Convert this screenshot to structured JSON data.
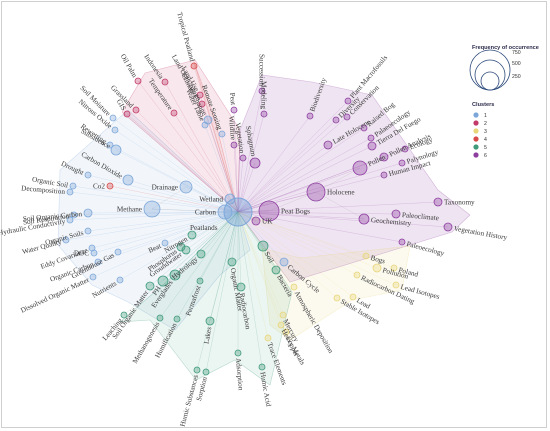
{
  "legend": {
    "size_title": "Frequency of occurrence",
    "size_values": [
      "750",
      "500",
      "250"
    ],
    "cluster_title": "Clusters",
    "clusters": [
      {
        "label": "1",
        "color": "#7da7d9"
      },
      {
        "label": "2",
        "color": "#c23b6a"
      },
      {
        "label": "3",
        "color": "#e8d67a"
      },
      {
        "label": "4",
        "color": "#d84a4a"
      },
      {
        "label": "5",
        "color": "#3f9a7a"
      },
      {
        "label": "6",
        "color": "#8e3fa0"
      }
    ]
  },
  "hub": {
    "name": "Peatlands",
    "label": "Peatlands"
  },
  "nodes": [
    {
      "id": "carbon",
      "label": "Carbon",
      "cluster": 1
    },
    {
      "id": "wetland",
      "label": "Wetland",
      "cluster": 1
    },
    {
      "id": "methane",
      "label": "Methane",
      "cluster": 1
    },
    {
      "id": "drainage",
      "label": "Drainage",
      "cluster": 1
    },
    {
      "id": "carbon-dioxide",
      "label": "Carbon Dioxide",
      "cluster": 1
    },
    {
      "id": "co2",
      "label": "Co2",
      "cluster": 4
    },
    {
      "id": "drought",
      "label": "Drought",
      "cluster": 1
    },
    {
      "id": "organic-soil",
      "label": "Organic Soil",
      "cluster": 1
    },
    {
      "id": "decomposition",
      "label": "Decomposition",
      "cluster": 1
    },
    {
      "id": "soil-organic-carbon",
      "label": "Soil Organic Carbon",
      "cluster": 1
    },
    {
      "id": "soil-respiration",
      "label": "Soil Respiration",
      "cluster": 1
    },
    {
      "id": "hydraulic-conductivity",
      "label": "Hydraulic Conductivity",
      "cluster": 1
    },
    {
      "id": "organic-soils",
      "label": "Organic Soils",
      "cluster": 1
    },
    {
      "id": "water-quality",
      "label": "Water Quality",
      "cluster": 1
    },
    {
      "id": "eddy-covariance",
      "label": "Eddy Covariance",
      "cluster": 1
    },
    {
      "id": "doc",
      "label": "DOC",
      "cluster": 1
    },
    {
      "id": "organic-carbon",
      "label": "Organic Carbon",
      "cluster": 1
    },
    {
      "id": "greenhouse-gas",
      "label": "Greenhouse Gas",
      "cluster": 1
    },
    {
      "id": "dissolved-organic-matter",
      "label": "Dissolved Organic Matter",
      "cluster": 1
    },
    {
      "id": "nutrients",
      "label": "Nutrients",
      "cluster": 1
    },
    {
      "id": "soil-moisture",
      "label": "Soil Moisture",
      "cluster": 1
    },
    {
      "id": "nitrous-oxide",
      "label": "Nitrous Oxide",
      "cluster": 1
    },
    {
      "id": "rewetting",
      "label": "Rewetting",
      "cluster": 1
    },
    {
      "id": "subsidence",
      "label": "Subsidence",
      "cluster": 1
    },
    {
      "id": "gis",
      "label": "GIS",
      "cluster": 2
    },
    {
      "id": "grassland",
      "label": "Grassland",
      "cluster": 2
    },
    {
      "id": "oil-palm",
      "label": "Oil Palm",
      "cluster": 2
    },
    {
      "id": "tropical-peatland",
      "label": "Tropical Peatland",
      "cluster": 4
    },
    {
      "id": "indonesia",
      "label": "Indonesia",
      "cluster": 2
    },
    {
      "id": "temperature",
      "label": "Temperature",
      "cluster": 2
    },
    {
      "id": "land-use",
      "label": "Land Use",
      "cluster": 2
    },
    {
      "id": "land-use-change",
      "label": "Land Use Change",
      "cluster": 2
    },
    {
      "id": "climate-change",
      "label": "Climate Change",
      "cluster": 1
    },
    {
      "id": "water-table",
      "label": "Water Table",
      "cluster": 1
    },
    {
      "id": "remote-sensing",
      "label": "Remote Sensing",
      "cluster": 1
    },
    {
      "id": "wildfire",
      "label": "Wildfire",
      "cluster": 6
    },
    {
      "id": "peat",
      "label": "Peat",
      "cluster": 6
    },
    {
      "id": "vegetation",
      "label": "Vegetation",
      "cluster": 6
    },
    {
      "id": "succession",
      "label": "Succession",
      "cluster": 6
    },
    {
      "id": "modeling",
      "label": "Modeling",
      "cluster": 6
    },
    {
      "id": "sphagnum",
      "label": "Sphagnum",
      "cluster": 6
    },
    {
      "id": "peat-bogs",
      "label": "Peat Bogs",
      "cluster": 6
    },
    {
      "id": "uk",
      "label": "UK",
      "cluster": 6
    },
    {
      "id": "holocene",
      "label": "Holocene",
      "cluster": 6
    },
    {
      "id": "biodiversity",
      "label": "Biodiversity",
      "cluster": 6
    },
    {
      "id": "plant-macrofossils",
      "label": "Plant Macrofossils",
      "cluster": 6
    },
    {
      "id": "conservation",
      "label": "Conservation",
      "cluster": 6
    },
    {
      "id": "diversity",
      "label": "Diversity",
      "cluster": 6
    },
    {
      "id": "raised-bog",
      "label": "Raised Bog",
      "cluster": 6
    },
    {
      "id": "palaeoecology",
      "label": "Palaeoecology",
      "cluster": 6
    },
    {
      "id": "late-holocene",
      "label": "Late Holocene",
      "cluster": 6
    },
    {
      "id": "tierra-del-fuego",
      "label": "Tierra Del Fuego",
      "cluster": 6
    },
    {
      "id": "pollen",
      "label": "Pollen",
      "cluster": 6
    },
    {
      "id": "pollen-analysis",
      "label": "Pollen Analysis",
      "cluster": 6
    },
    {
      "id": "ecology",
      "label": "Ecology",
      "cluster": 6
    },
    {
      "id": "palynology",
      "label": "Palynology",
      "cluster": 6
    },
    {
      "id": "human-impact",
      "label": "Human Impact",
      "cluster": 6
    },
    {
      "id": "taxonomy",
      "label": "Taxonomy",
      "cluster": 6
    },
    {
      "id": "paleoclimate",
      "label": "Paleoclimate",
      "cluster": 6
    },
    {
      "id": "geochemistry",
      "label": "Geochemistry",
      "cluster": 6
    },
    {
      "id": "vegetation-history",
      "label": "Vegetation History",
      "cluster": 6
    },
    {
      "id": "paleoecology",
      "label": "Paleoecology",
      "cluster": 6
    },
    {
      "id": "bogs",
      "label": "Bogs",
      "cluster": 3
    },
    {
      "id": "pollution",
      "label": "Pollution",
      "cluster": 3
    },
    {
      "id": "poland",
      "label": "Poland",
      "cluster": 3
    },
    {
      "id": "lead-isotopes",
      "label": "Lead Isotopes",
      "cluster": 3
    },
    {
      "id": "radiocarbon-dating",
      "label": "Radiocarbon Dating",
      "cluster": 3
    },
    {
      "id": "lead",
      "label": "Lead",
      "cluster": 3
    },
    {
      "id": "stable-isotopes",
      "label": "Stable Isotopes",
      "cluster": 3
    },
    {
      "id": "carbon-cycle",
      "label": "Carbon Cycle",
      "cluster": 1
    },
    {
      "id": "bacteria",
      "label": "Bacteria",
      "cluster": 5
    },
    {
      "id": "soil",
      "label": "Soil",
      "cluster": 5
    },
    {
      "id": "heavy-metals",
      "label": "Heavy Metals",
      "cluster": 3
    },
    {
      "id": "atmospheric-deposition",
      "label": "Atmospheric Deposition",
      "cluster": 3
    },
    {
      "id": "mercury",
      "label": "Mercury",
      "cluster": 3
    },
    {
      "id": "copper",
      "label": "Copper",
      "cluster": 3
    },
    {
      "id": "trace-elements",
      "label": "Trace Elements",
      "cluster": 3
    },
    {
      "id": "humic-acid",
      "label": "Humic Acid",
      "cluster": 5
    },
    {
      "id": "adsorption",
      "label": "Adsorption",
      "cluster": 5
    },
    {
      "id": "radiocarbon",
      "label": "Radiocarbon",
      "cluster": 5
    },
    {
      "id": "organic-matter",
      "label": "Organic Matter",
      "cluster": 5
    },
    {
      "id": "lakes",
      "label": "Lakes",
      "cluster": 5
    },
    {
      "id": "humic-substances",
      "label": "Humic Substances",
      "cluster": 5
    },
    {
      "id": "sorption",
      "label": "Sorption",
      "cluster": 5
    },
    {
      "id": "permafrost",
      "label": "Permafrost",
      "cluster": 5
    },
    {
      "id": "methanogenesis",
      "label": "Methanogenesis",
      "cluster": 5
    },
    {
      "id": "humification",
      "label": "Humification",
      "cluster": 5
    },
    {
      "id": "ph",
      "label": "PH",
      "cluster": 5
    },
    {
      "id": "everglades",
      "label": "Everglades",
      "cluster": 5
    },
    {
      "id": "leaching",
      "label": "Leaching",
      "cluster": 5
    },
    {
      "id": "soil-organic-matter",
      "label": "Soil Organic Matter",
      "cluster": 5
    },
    {
      "id": "nitrogen",
      "label": "Nitrogen",
      "cluster": 5
    },
    {
      "id": "phosphorus",
      "label": "Phosphorus",
      "cluster": 5
    },
    {
      "id": "groundwater",
      "label": "Groundwater",
      "cluster": 5
    },
    {
      "id": "hydrology",
      "label": "Hydrology",
      "cluster": 5
    },
    {
      "id": "beat",
      "label": "Beat",
      "cluster": 1
    }
  ]
}
